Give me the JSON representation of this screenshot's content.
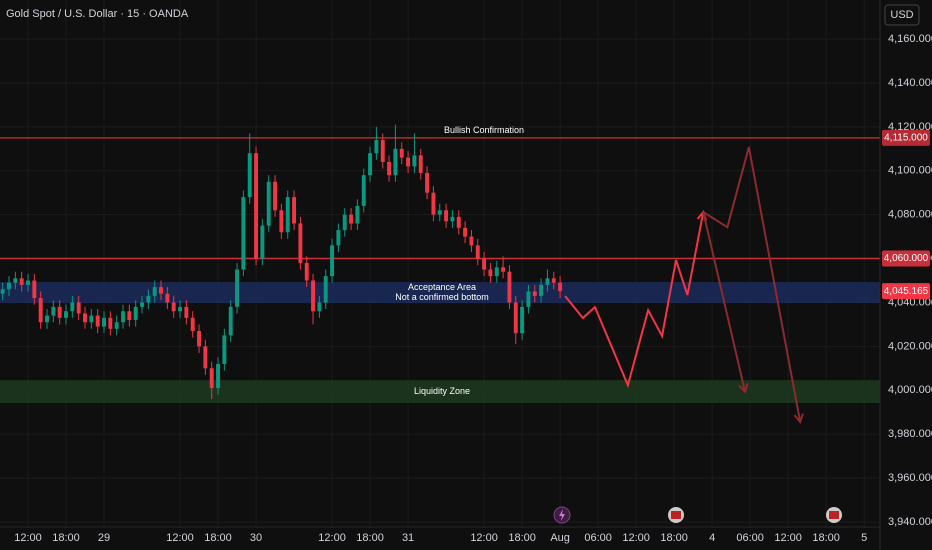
{
  "chart_data": {
    "type": "candlestick",
    "title": "Gold Spot / U.S. Dollar · 15 · OANDA",
    "currency": "USD",
    "x": [
      -4,
      -3,
      -2,
      -1,
      0,
      1,
      2,
      3,
      4,
      5,
      6,
      7,
      8,
      9,
      10,
      11,
      12,
      13,
      14,
      15,
      16,
      17,
      18,
      19,
      20,
      21,
      22,
      23,
      24,
      25,
      26,
      27,
      28,
      29,
      30,
      31,
      32,
      33,
      34,
      35,
      36,
      37,
      38,
      39,
      40,
      41,
      42,
      43,
      44,
      45,
      46,
      47,
      48,
      49,
      50,
      51,
      52,
      53,
      54,
      55,
      56,
      57,
      58,
      59,
      60,
      61,
      62,
      63,
      64,
      65,
      66,
      67,
      68,
      69,
      70,
      71,
      72,
      73,
      74,
      75,
      76,
      77,
      78,
      79,
      80,
      81,
      82,
      83,
      84
    ],
    "open": [
      4044,
      4046,
      4049,
      4051,
      4048,
      4050,
      4042,
      4031,
      4034,
      4038,
      4033,
      4036,
      4040,
      4035,
      4031,
      4034,
      4029,
      4033,
      4028,
      4031,
      4036,
      4032,
      4038,
      4040,
      4043,
      4047,
      4044,
      4040,
      4036,
      4038,
      4033,
      4027,
      4020,
      4010,
      4001,
      4012,
      4025,
      4038,
      4055,
      4088,
      4108,
      4060,
      4075,
      4095,
      4082,
      4072,
      4088,
      4076,
      4058,
      4050,
      4036,
      4040,
      4052,
      4066,
      4073,
      4080,
      4076,
      4084,
      4098,
      4108,
      4114,
      4104,
      4098,
      4110,
      4106,
      4102,
      4107,
      4099,
      4090,
      4080,
      4082,
      4077,
      4079,
      4074,
      4070,
      4066,
      4060,
      4055,
      4052,
      4056,
      4054,
      4040,
      4026,
      4038,
      4045,
      4043,
      4048,
      4051,
      4049
    ],
    "high": [
      4049,
      4052,
      4054,
      4054,
      4053,
      4053,
      4045,
      4037,
      4041,
      4041,
      4039,
      4043,
      4043,
      4038,
      4037,
      4037,
      4036,
      4036,
      4034,
      4039,
      4039,
      4041,
      4043,
      4046,
      4050,
      4050,
      4047,
      4043,
      4041,
      4041,
      4036,
      4030,
      4023,
      4013,
      4015,
      4028,
      4041,
      4058,
      4091,
      4117,
      4111,
      4078,
      4098,
      4098,
      4085,
      4091,
      4091,
      4079,
      4061,
      4053,
      4043,
      4055,
      4069,
      4076,
      4083,
      4083,
      4087,
      4101,
      4111,
      4120,
      4117,
      4107,
      4121,
      4113,
      4109,
      4117,
      4110,
      4102,
      4093,
      4085,
      4085,
      4082,
      4082,
      4077,
      4073,
      4069,
      4063,
      4058,
      4059,
      4061,
      4057,
      4043,
      4041,
      4048,
      4048,
      4051,
      4055,
      4054,
      4052
    ],
    "low": [
      4041,
      4043,
      4046,
      4045,
      4045,
      4039,
      4028,
      4028,
      4031,
      4030,
      4030,
      4033,
      4032,
      4028,
      4028,
      4026,
      4026,
      4025,
      4025,
      4028,
      4029,
      4029,
      4035,
      4037,
      4040,
      4041,
      4037,
      4033,
      4033,
      4030,
      4024,
      4017,
      4007,
      3996,
      3998,
      4009,
      4022,
      4035,
      4052,
      4085,
      4057,
      4057,
      4072,
      4079,
      4069,
      4069,
      4073,
      4055,
      4047,
      4030,
      4033,
      4037,
      4049,
      4063,
      4070,
      4073,
      4073,
      4081,
      4095,
      4105,
      4101,
      4095,
      4095,
      4103,
      4099,
      4099,
      4096,
      4087,
      4077,
      4077,
      4074,
      4074,
      4071,
      4067,
      4063,
      4057,
      4052,
      4049,
      4049,
      4051,
      4037,
      4021,
      4023,
      4035,
      4040,
      4040,
      4045,
      4046,
      4042
    ],
    "close": [
      4046,
      4049,
      4051,
      4048,
      4050,
      4042,
      4031,
      4034,
      4038,
      4033,
      4036,
      4040,
      4035,
      4031,
      4034,
      4029,
      4033,
      4028,
      4031,
      4036,
      4032,
      4038,
      4040,
      4043,
      4047,
      4044,
      4040,
      4036,
      4038,
      4033,
      4027,
      4020,
      4010,
      4001,
      4012,
      4025,
      4038,
      4055,
      4088,
      4108,
      4060,
      4075,
      4095,
      4082,
      4072,
      4088,
      4076,
      4058,
      4050,
      4036,
      4040,
      4052,
      4066,
      4073,
      4080,
      4076,
      4084,
      4098,
      4108,
      4114,
      4104,
      4098,
      4110,
      4106,
      4102,
      4107,
      4099,
      4090,
      4080,
      4082,
      4077,
      4079,
      4074,
      4070,
      4066,
      4060,
      4055,
      4052,
      4056,
      4054,
      4040,
      4026,
      4038,
      4045,
      4043,
      4048,
      4051,
      4049,
      4045.165
    ],
    "last_price_label": "4,045.165",
    "up_color": "#089981",
    "down_color": "#f23645",
    "xlim": [
      -4.42,
      134.5
    ],
    "ylim": [
      3937.7,
      4177.8
    ],
    "xticks": [
      {
        "value": 0,
        "label": "12:00"
      },
      {
        "value": 6,
        "label": "18:00"
      },
      {
        "value": 12,
        "label": "29"
      },
      {
        "value": 24,
        "label": "12:00"
      },
      {
        "value": 30,
        "label": "18:00"
      },
      {
        "value": 36,
        "label": "30"
      },
      {
        "value": 48,
        "label": "12:00"
      },
      {
        "value": 54,
        "label": "18:00"
      },
      {
        "value": 60,
        "label": "31"
      },
      {
        "value": 72,
        "label": "12:00"
      },
      {
        "value": 78,
        "label": "18:00"
      },
      {
        "value": 84,
        "label": "Aug"
      },
      {
        "value": 90,
        "label": "06:00"
      },
      {
        "value": 96,
        "label": "12:00"
      },
      {
        "value": 102,
        "label": "18:00"
      },
      {
        "value": 108,
        "label": "4"
      },
      {
        "value": 114,
        "label": "06:00"
      },
      {
        "value": 120,
        "label": "12:00"
      },
      {
        "value": 126,
        "label": "18:00"
      },
      {
        "value": 132,
        "label": "5"
      }
    ],
    "yticks": [
      {
        "value": 3940,
        "label": "3,940.000"
      },
      {
        "value": 3960,
        "label": "3,960.000"
      },
      {
        "value": 3980,
        "label": "3,980.000"
      },
      {
        "value": 4000,
        "label": "4,000.000"
      },
      {
        "value": 4020,
        "label": "4,020.000"
      },
      {
        "value": 4040,
        "label": "4,040.000"
      },
      {
        "value": 4060,
        "label": "4,060.000"
      },
      {
        "value": 4080,
        "label": "4,080.000"
      },
      {
        "value": 4100,
        "label": "4,100.000"
      },
      {
        "value": 4120,
        "label": "4,120.000"
      },
      {
        "value": 4140,
        "label": "4,140.000"
      },
      {
        "value": 4160,
        "label": "4,160.000"
      }
    ],
    "lines": [
      {
        "value": 4115,
        "label": "4,115.000",
        "text": "Bullish Confirmation",
        "color": "#b52a33"
      },
      {
        "value": 4060,
        "label": "4,060.000",
        "color": "#c8303a"
      }
    ],
    "zones": [
      {
        "from": 4039.7,
        "to": 4049.3,
        "color": "#1b2a5c",
        "labels": [
          "Acceptance Area",
          "Not a confirmed bottom"
        ]
      },
      {
        "from": 3994.2,
        "to": 4004.6,
        "color": "#1d3a1f",
        "labels": [
          "Liquidity Zone"
        ]
      }
    ],
    "projections": [
      {
        "color": "#f23645",
        "opacity": 1,
        "x": [
          84.8,
          87.6,
          89.5,
          94.7,
          97.9,
          100.1,
          102.3,
          104.1,
          106.6
        ],
        "values": [
          4042.9,
          4032.9,
          4037.9,
          4002.3,
          4036.5,
          4024.7,
          4059.3,
          4043.4,
          4081.2
        ]
      },
      {
        "color": "#8c2a30",
        "opacity": 1,
        "x": [
          106.6,
          110.4,
          113.8,
          121.9
        ],
        "values": [
          4081.2,
          4074.3,
          4110.8,
          3985.5
        ]
      },
      {
        "color": "#8c2a30",
        "opacity": 1,
        "x": [
          106.6,
          113.2
        ],
        "values": [
          4081.2,
          3999.2
        ]
      }
    ]
  }
}
